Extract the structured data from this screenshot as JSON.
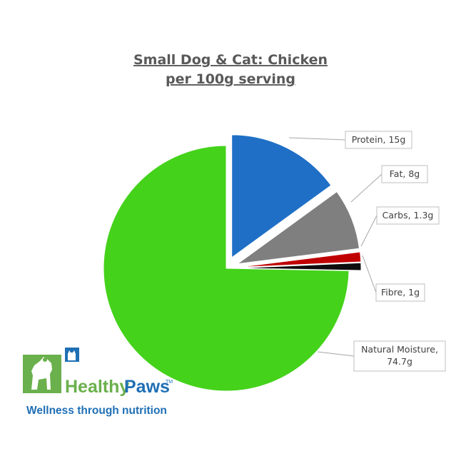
{
  "chart_data": {
    "type": "pie",
    "title": "Small Dog & Cat: Chicken",
    "subtitle": "per 100g serving",
    "slices": [
      {
        "label": "Protein",
        "value": 15,
        "display": "Protein, 15g",
        "color": "#1f6fc6"
      },
      {
        "label": "Fat",
        "value": 8,
        "display": "Fat, 8g",
        "color": "#7f7f7f"
      },
      {
        "label": "Carbs",
        "value": 1.3,
        "display": "Carbs, 1.3g",
        "color": "#c00000"
      },
      {
        "label": "Fibre",
        "value": 1,
        "display": "Fibre, 1g",
        "color": "#0d0d0d"
      },
      {
        "label": "Natural Moisture",
        "value": 74.7,
        "display": [
          "Natural Moisture,",
          "74.7g"
        ],
        "color": "#44d21a"
      }
    ],
    "legend": "none"
  },
  "logo": {
    "brand_part1": "Healthy",
    "brand_part2": "Paws",
    "trademark": "TM",
    "tagline": "Wellness through nutrition",
    "green": "#6ab04c",
    "blue": "#1f6fb5"
  }
}
